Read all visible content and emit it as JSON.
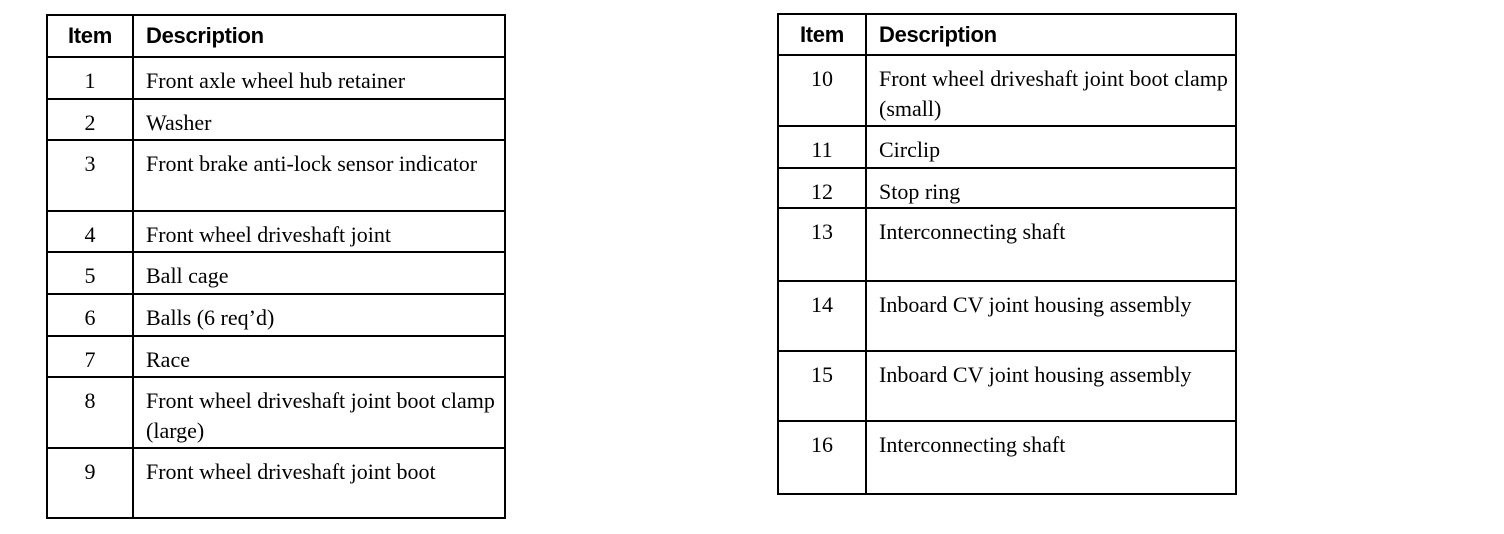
{
  "left_table": {
    "headers": {
      "item": "Item",
      "description": "Description"
    },
    "rows": [
      {
        "item": "1",
        "description": "Front axle wheel hub retainer"
      },
      {
        "item": "2",
        "description": "Washer"
      },
      {
        "item": "3",
        "description": "Front brake anti-lock sensor indicator"
      },
      {
        "item": "4",
        "description": "Front wheel driveshaft joint"
      },
      {
        "item": "5",
        "description": "Ball cage"
      },
      {
        "item": "6",
        "description": "Balls (6 req’d)"
      },
      {
        "item": "7",
        "description": "Race"
      },
      {
        "item": "8",
        "description": "Front wheel driveshaft joint boot clamp (large)"
      },
      {
        "item": "9",
        "description": "Front wheel driveshaft joint boot"
      }
    ]
  },
  "right_table": {
    "headers": {
      "item": "Item",
      "description": "Description"
    },
    "rows": [
      {
        "item": "10",
        "description": "Front wheel driveshaft joint boot clamp (small)"
      },
      {
        "item": "11",
        "description": "Circlip"
      },
      {
        "item": "12",
        "description": "Stop ring"
      },
      {
        "item": "13",
        "description": "Interconnecting shaft"
      },
      {
        "item": "14",
        "description": "Inboard CV joint housing assembly"
      },
      {
        "item": "15",
        "description": "Inboard CV joint housing assembly"
      },
      {
        "item": "16",
        "description": "Interconnecting shaft"
      }
    ]
  }
}
